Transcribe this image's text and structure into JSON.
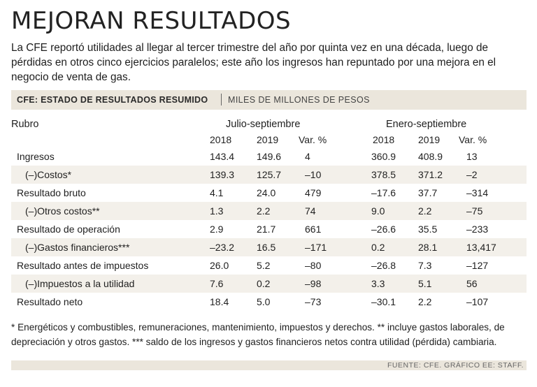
{
  "title": "MEJORAN RESULTADOS",
  "intro": "La CFE reportó utilidades al llegar al tercer trimestre del año por quinta vez en una década, luego de pérdidas en otros cinco ejercicios paralelos; este año los ingresos han repuntado por una mejora en el negocio de venta de gas.",
  "table_header": {
    "title": "CFE: ESTADO DE RESULTADOS RESUMIDO",
    "unit": "MILES DE MILLONES DE PESOS"
  },
  "columns": {
    "rubro": "Rubro",
    "group1": "Julio-septiembre",
    "group2": "Enero-septiembre",
    "sub": [
      "2018",
      "2019",
      "Var. %",
      "2018",
      "2019",
      "Var. %"
    ]
  },
  "rows": [
    {
      "label": "Ingresos",
      "values": [
        "143.4",
        "149.6",
        "4",
        "360.9",
        "408.9",
        "13"
      ]
    },
    {
      "label": "(–)Costos*",
      "values": [
        "139.3",
        "125.7",
        "–10",
        "378.5",
        "371.2",
        "–2"
      ]
    },
    {
      "label": "Resultado bruto",
      "values": [
        "4.1",
        "24.0",
        "479",
        "–17.6",
        "37.7",
        "–314"
      ]
    },
    {
      "label": "(–)Otros costos**",
      "values": [
        "1.3",
        "2.2",
        "74",
        "9.0",
        "2.2",
        "–75"
      ]
    },
    {
      "label": "Resultado de operación",
      "values": [
        "2.9",
        "21.7",
        "661",
        "–26.6",
        "35.5",
        "–233"
      ]
    },
    {
      "label": "(–)Gastos financieros***",
      "values": [
        "–23.2",
        "16.5",
        "–171",
        "0.2",
        "28.1",
        "13,417"
      ]
    },
    {
      "label": "Resultado antes de impuestos",
      "values": [
        "26.0",
        "5.2",
        "–80",
        "–26.8",
        "7.3",
        "–127"
      ]
    },
    {
      "label": "(–)Impuestos a la utilidad",
      "values": [
        "7.6",
        "0.2",
        "–98",
        "3.3",
        "5.1",
        "56"
      ]
    },
    {
      "label": "Resultado neto",
      "values": [
        "18.4",
        "5.0",
        "–73",
        "–30.1",
        "2.2",
        "–107"
      ]
    }
  ],
  "footnote": "* Energéticos y combustibles, remuneraciones, mantenimiento, impuestos y derechos. ** incluye gastos laborales, de depreciación y otros gastos. *** saldo de los ingresos y gastos financieros netos contra utilidad (pérdida) cambiaria.",
  "source": "FUENTE: CFE. GRÁFICO EE: STAFF."
}
